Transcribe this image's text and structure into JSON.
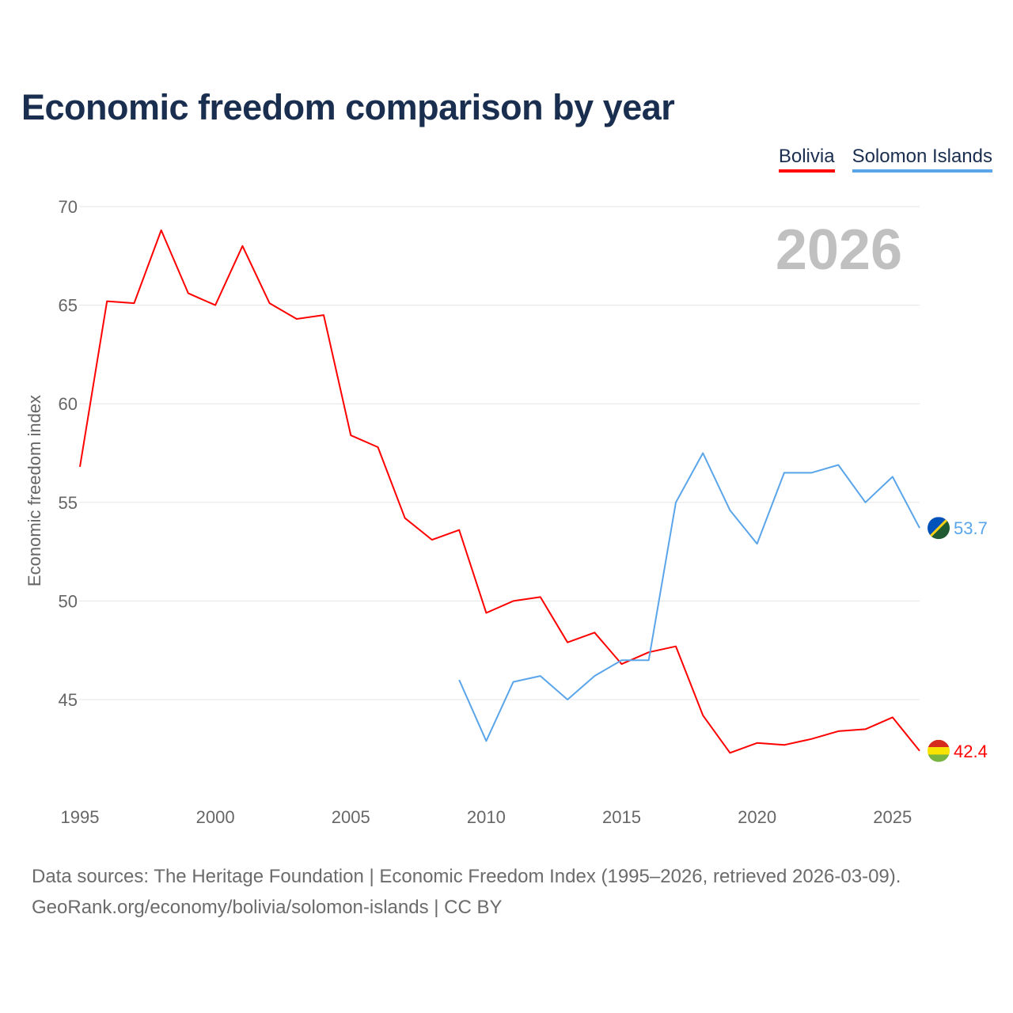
{
  "chart_data": {
    "type": "line",
    "title": "Economic freedom comparison by year",
    "xlabel": "",
    "ylabel": "Economic freedom index",
    "xlim": [
      1995,
      2026
    ],
    "ylim": [
      40,
      70
    ],
    "yticks": [
      45,
      50,
      55,
      60,
      65,
      70
    ],
    "xticks": [
      1995,
      2000,
      2005,
      2010,
      2015,
      2020,
      2025
    ],
    "grid": true,
    "legend_placement": "top-right",
    "watermark_year": "2026",
    "series": [
      {
        "name": "Bolivia",
        "color": "#ff0000",
        "end_label": "42.4",
        "x": [
          1995,
          1996,
          1997,
          1998,
          1999,
          2000,
          2001,
          2002,
          2003,
          2004,
          2005,
          2006,
          2007,
          2008,
          2009,
          2010,
          2011,
          2012,
          2013,
          2014,
          2015,
          2016,
          2017,
          2018,
          2019,
          2020,
          2021,
          2022,
          2023,
          2024,
          2025,
          2026
        ],
        "values": [
          56.8,
          65.2,
          65.1,
          68.8,
          65.6,
          65.0,
          68.0,
          65.1,
          64.3,
          64.5,
          58.4,
          57.8,
          54.2,
          53.1,
          53.6,
          49.4,
          50.0,
          50.2,
          47.9,
          48.4,
          46.8,
          47.4,
          47.7,
          44.2,
          42.3,
          42.8,
          42.7,
          43.0,
          43.4,
          43.5,
          44.1,
          42.4
        ]
      },
      {
        "name": "Solomon Islands",
        "color": "#5aa5ea",
        "end_label": "53.7",
        "x": [
          2009,
          2010,
          2011,
          2012,
          2013,
          2014,
          2015,
          2016,
          2017,
          2018,
          2019,
          2020,
          2021,
          2022,
          2023,
          2024,
          2025,
          2026
        ],
        "values": [
          46.0,
          42.9,
          45.9,
          46.2,
          45.0,
          46.2,
          47.0,
          47.0,
          55.0,
          57.5,
          54.6,
          52.9,
          56.5,
          56.5,
          56.9,
          55.0,
          56.3,
          53.7
        ]
      }
    ]
  },
  "source_lines": [
    "Data sources: The Heritage Foundation | Economic Freedom Index (1995–2026, retrieved 2026-03-09).",
    "GeoRank.org/economy/bolivia/solomon-islands | CC BY"
  ]
}
